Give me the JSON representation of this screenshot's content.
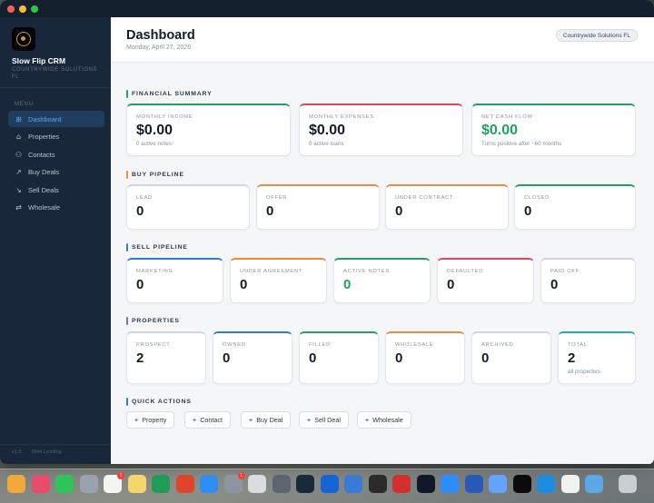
{
  "window": {
    "traffic_lights": [
      "close",
      "minimize",
      "zoom"
    ]
  },
  "sidebar": {
    "app_name": "Slow Flip CRM",
    "org_name": "COUNTRYWIDE SOLUTIONS FL",
    "menu_label": "MENU",
    "items": [
      {
        "label": "Dashboard",
        "icon": "grid-icon",
        "active": true
      },
      {
        "label": "Properties",
        "icon": "home-icon",
        "active": false
      },
      {
        "label": "Contacts",
        "icon": "users-icon",
        "active": false
      },
      {
        "label": "Buy Deals",
        "icon": "trend-up-icon",
        "active": false
      },
      {
        "label": "Sell Deals",
        "icon": "trend-down-icon",
        "active": false
      },
      {
        "label": "Wholesale",
        "icon": "repeat-icon",
        "active": false
      }
    ],
    "footer_version": "v1.0",
    "footer_note": "Rent Lending"
  },
  "header": {
    "title": "Dashboard",
    "date": "Monday, April 27, 2026",
    "org_pill": "Countrywide Solutions FL"
  },
  "financial": {
    "title": "FINANCIAL SUMMARY",
    "cards": [
      {
        "label": "MONTHLY INCOME",
        "value": "$0.00",
        "sub": "0 active notes"
      },
      {
        "label": "MONTHLY EXPENSES",
        "value": "$0.00",
        "sub": "0 active loans"
      },
      {
        "label": "NET CASH FLOW",
        "value": "$0.00",
        "sub": "Turns positive after ~60 months"
      }
    ]
  },
  "buy_pipeline": {
    "title": "BUY PIPELINE",
    "cards": [
      {
        "label": "LEAD",
        "value": "0"
      },
      {
        "label": "OFFER",
        "value": "0"
      },
      {
        "label": "UNDER CONTRACT",
        "value": "0"
      },
      {
        "label": "CLOSED",
        "value": "0"
      }
    ]
  },
  "sell_pipeline": {
    "title": "SELL PIPELINE",
    "cards": [
      {
        "label": "MARKETING",
        "value": "0"
      },
      {
        "label": "UNDER AGREEMENT",
        "value": "0"
      },
      {
        "label": "ACTIVE NOTES",
        "value": "0"
      },
      {
        "label": "DEFAULTED",
        "value": "0"
      },
      {
        "label": "PAID OFF",
        "value": "0"
      }
    ]
  },
  "properties": {
    "title": "PROPERTIES",
    "cards": [
      {
        "label": "PROSPECT",
        "value": "2"
      },
      {
        "label": "OWNED",
        "value": "0"
      },
      {
        "label": "FILLED",
        "value": "0"
      },
      {
        "label": "WHOLESALE",
        "value": "0"
      },
      {
        "label": "ARCHIVED",
        "value": "0"
      },
      {
        "label": "TOTAL",
        "value": "2",
        "sub": "all properties"
      }
    ]
  },
  "quick_actions": {
    "title": "QUICK ACTIONS",
    "buttons": [
      "Property",
      "Contact",
      "Buy Deal",
      "Sell Deal",
      "Wholesale"
    ]
  },
  "colors": {
    "green": "#1fa35c",
    "red": "#e0475b",
    "orange": "#ef8a3c",
    "blue": "#2b7fd6",
    "purple": "#8b5cf6",
    "teal": "#14b8a6",
    "gray": "#cfd6dd",
    "sidebar_bg": "#18283a"
  },
  "dock": {
    "apps": [
      "finder-icon",
      "photos-icon",
      "facetime-icon",
      "contacts-icon",
      "reminders-icon",
      "notes-icon",
      "numbers-icon",
      "pages-icon",
      "appstore-icon",
      "chrome-icon",
      "collapse-icon",
      "calculator-icon",
      "toolbox-icon",
      "malwarebytes-icon",
      "preview-icon",
      "poster-icon",
      "pdf-icon",
      "terminal-icon",
      "zoom-icon",
      "print-icon",
      "finder-alt-icon",
      "crm-icon",
      "vscode-icon",
      "voice-memos-icon",
      "disk-icon",
      "trash-icon"
    ],
    "badges": {
      "reminders-icon": "1",
      "chrome-icon": "1"
    }
  }
}
